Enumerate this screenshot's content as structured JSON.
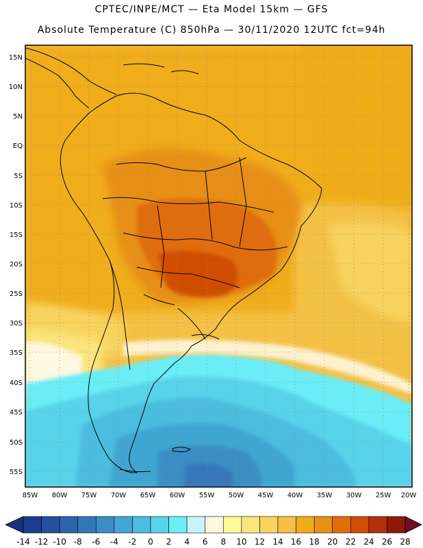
{
  "title_line1": "CPTEC/INPE/MCT —  Eta Model 15km — GFS",
  "title_line2": "Absolute Temperature (C) 850hPa — 30/11/2020 12UTC fct=94h",
  "lat_labels": [
    "15N",
    "10N",
    "5N",
    "EQ",
    "5S",
    "10S",
    "15S",
    "20S",
    "25S",
    "30S",
    "35S",
    "40S",
    "45S",
    "50S",
    "55S"
  ],
  "lon_labels": [
    "85W",
    "80W",
    "75W",
    "70W",
    "65W",
    "60W",
    "55W",
    "50W",
    "45W",
    "40W",
    "35W",
    "30W",
    "25W",
    "20W"
  ],
  "colorbar": {
    "labels": [
      "-14",
      "-12",
      "-10",
      "-8",
      "-6",
      "-4",
      "-2",
      "0",
      "2",
      "4",
      "6",
      "8",
      "10",
      "12",
      "14",
      "16",
      "18",
      "20",
      "22",
      "24",
      "26",
      "28"
    ],
    "colors": [
      "#1b3d8f",
      "#24509e",
      "#2d64ad",
      "#3477b8",
      "#3a8ec4",
      "#41a6d1",
      "#4cbddf",
      "#58d3ea",
      "#6bedf6",
      "#c8f3fb",
      "#fdf8df",
      "#fefa9a",
      "#fbe57d",
      "#f8d45e",
      "#f4c146",
      "#f0ad1a",
      "#e78f16",
      "#e06d09",
      "#d04d05",
      "#b33008",
      "#8e1a0a"
    ],
    "left_arrow_color": "#17327b",
    "right_arrow_color": "#6e0e1f"
  },
  "colors": {
    "frame": "#000000",
    "grid": "#8c8c8c",
    "coast": "#000000"
  }
}
